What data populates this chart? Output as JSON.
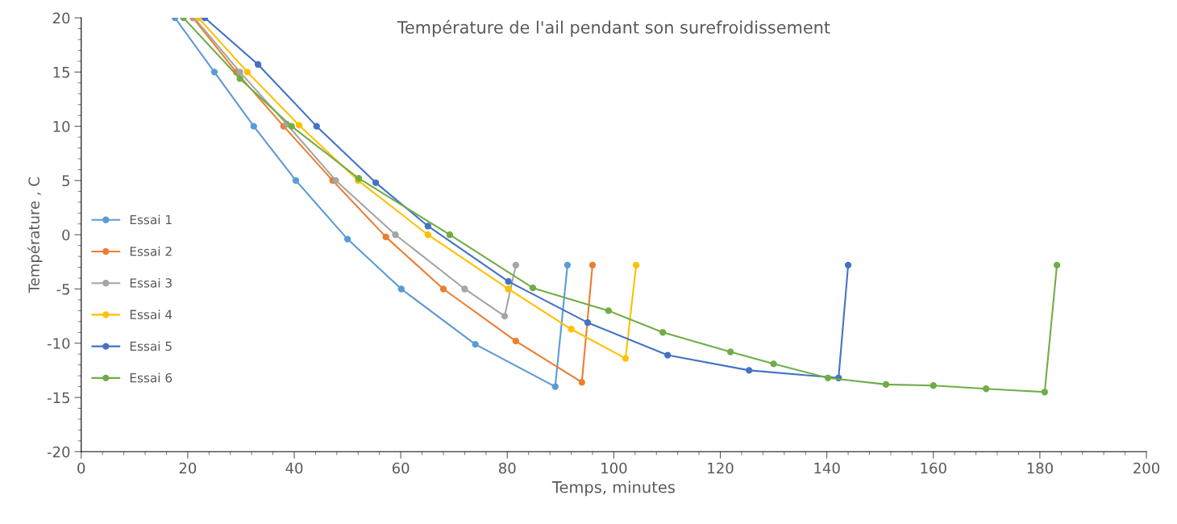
{
  "chart_data": {
    "type": "line",
    "title": "Température de l'ail pendant son surefroidissement",
    "xlabel": "Temps, minutes",
    "ylabel": "Température , C",
    "xlim": [
      0,
      200
    ],
    "xticks": [
      0,
      20,
      40,
      60,
      80,
      100,
      120,
      140,
      160,
      180,
      200
    ],
    "ylim": [
      -20,
      20
    ],
    "yticks": [
      -20,
      -15,
      -10,
      -5,
      0,
      5,
      10,
      15,
      20
    ],
    "grid": false,
    "legend": "left",
    "marker": "circle",
    "line_style": "solid",
    "series": [
      {
        "name": "Essai 1",
        "color": "#5b9bd5",
        "x": [
          17.6,
          25,
          32.4,
          40.3,
          50,
          60.1,
          74,
          89,
          91.3
        ],
        "values": [
          20,
          15,
          10,
          5,
          -0.4,
          -5,
          -10.1,
          -14,
          -2.8
        ]
      },
      {
        "name": "Essai 2",
        "color": "#ed7d31",
        "x": [
          21,
          29.1,
          38,
          47.2,
          57.2,
          68,
          81.6,
          94,
          96
        ],
        "values": [
          20,
          15,
          10,
          5,
          -0.2,
          -5,
          -9.8,
          -13.6,
          -2.8
        ]
      },
      {
        "name": "Essai 3",
        "color": "#a5a5a5",
        "x": [
          21.2,
          29.8,
          38.6,
          47.8,
          59,
          72,
          79.5,
          81.6
        ],
        "values": [
          20,
          15,
          10.2,
          5,
          0,
          -5,
          -7.5,
          -2.8
        ]
      },
      {
        "name": "Essai 4",
        "color": "#ffc000",
        "x": [
          22,
          31.2,
          40.9,
          52,
          65.1,
          80.2,
          92,
          102.2,
          104.2
        ],
        "values": [
          20,
          15,
          10.1,
          5,
          0,
          -5,
          -8.7,
          -11.4,
          -2.8
        ]
      },
      {
        "name": "Essai 5",
        "color": "#4472c4",
        "x": [
          23.2,
          33.2,
          44.2,
          55.3,
          65.1,
          80.2,
          95.1,
          110.1,
          125.4,
          142.2,
          144
        ],
        "values": [
          20,
          15.7,
          10,
          4.8,
          0.8,
          -4.3,
          -8.1,
          -11.1,
          -12.5,
          -13.2,
          -2.8
        ]
      },
      {
        "name": "Essai 6",
        "color": "#70ad47",
        "x": [
          19.2,
          29.8,
          39.5,
          52.1,
          69.2,
          84.8,
          99,
          109.2,
          121.9,
          130,
          140.2,
          151.1,
          160,
          169.9,
          180.9,
          183.2
        ],
        "values": [
          20,
          14.4,
          10,
          5.2,
          0,
          -4.9,
          -7,
          -9,
          -10.8,
          -11.9,
          -13.2,
          -13.8,
          -13.9,
          -14.2,
          -14.5,
          -2.8
        ]
      }
    ]
  }
}
